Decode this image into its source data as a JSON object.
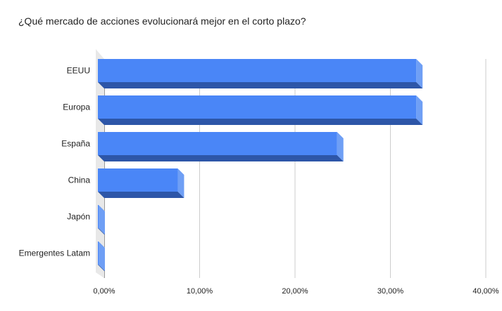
{
  "chart_data": {
    "type": "bar",
    "orientation": "horizontal",
    "style": "3d",
    "title": "¿Qué mercado de acciones evolucionará mejor en el corto plazo?",
    "categories": [
      "EEUU",
      "Europa",
      "España",
      "China",
      "Japón",
      "Emergentes Latam"
    ],
    "values": [
      33.3,
      33.3,
      25.0,
      8.3,
      0,
      0
    ],
    "xlim": [
      0,
      40
    ],
    "xticks": [
      0,
      10,
      20,
      30,
      40
    ],
    "tick_labels": [
      "0,00%",
      "10,00%",
      "20,00%",
      "30,00%",
      "40,00%"
    ],
    "grid": "vertical",
    "legend": "none",
    "colors": {
      "bar_front": "#4a86f7",
      "bar_bottom": "#2d56a8",
      "bar_side": "#6f9ff5",
      "grid": "#cccccc",
      "floor": "#e8e8e8"
    }
  }
}
